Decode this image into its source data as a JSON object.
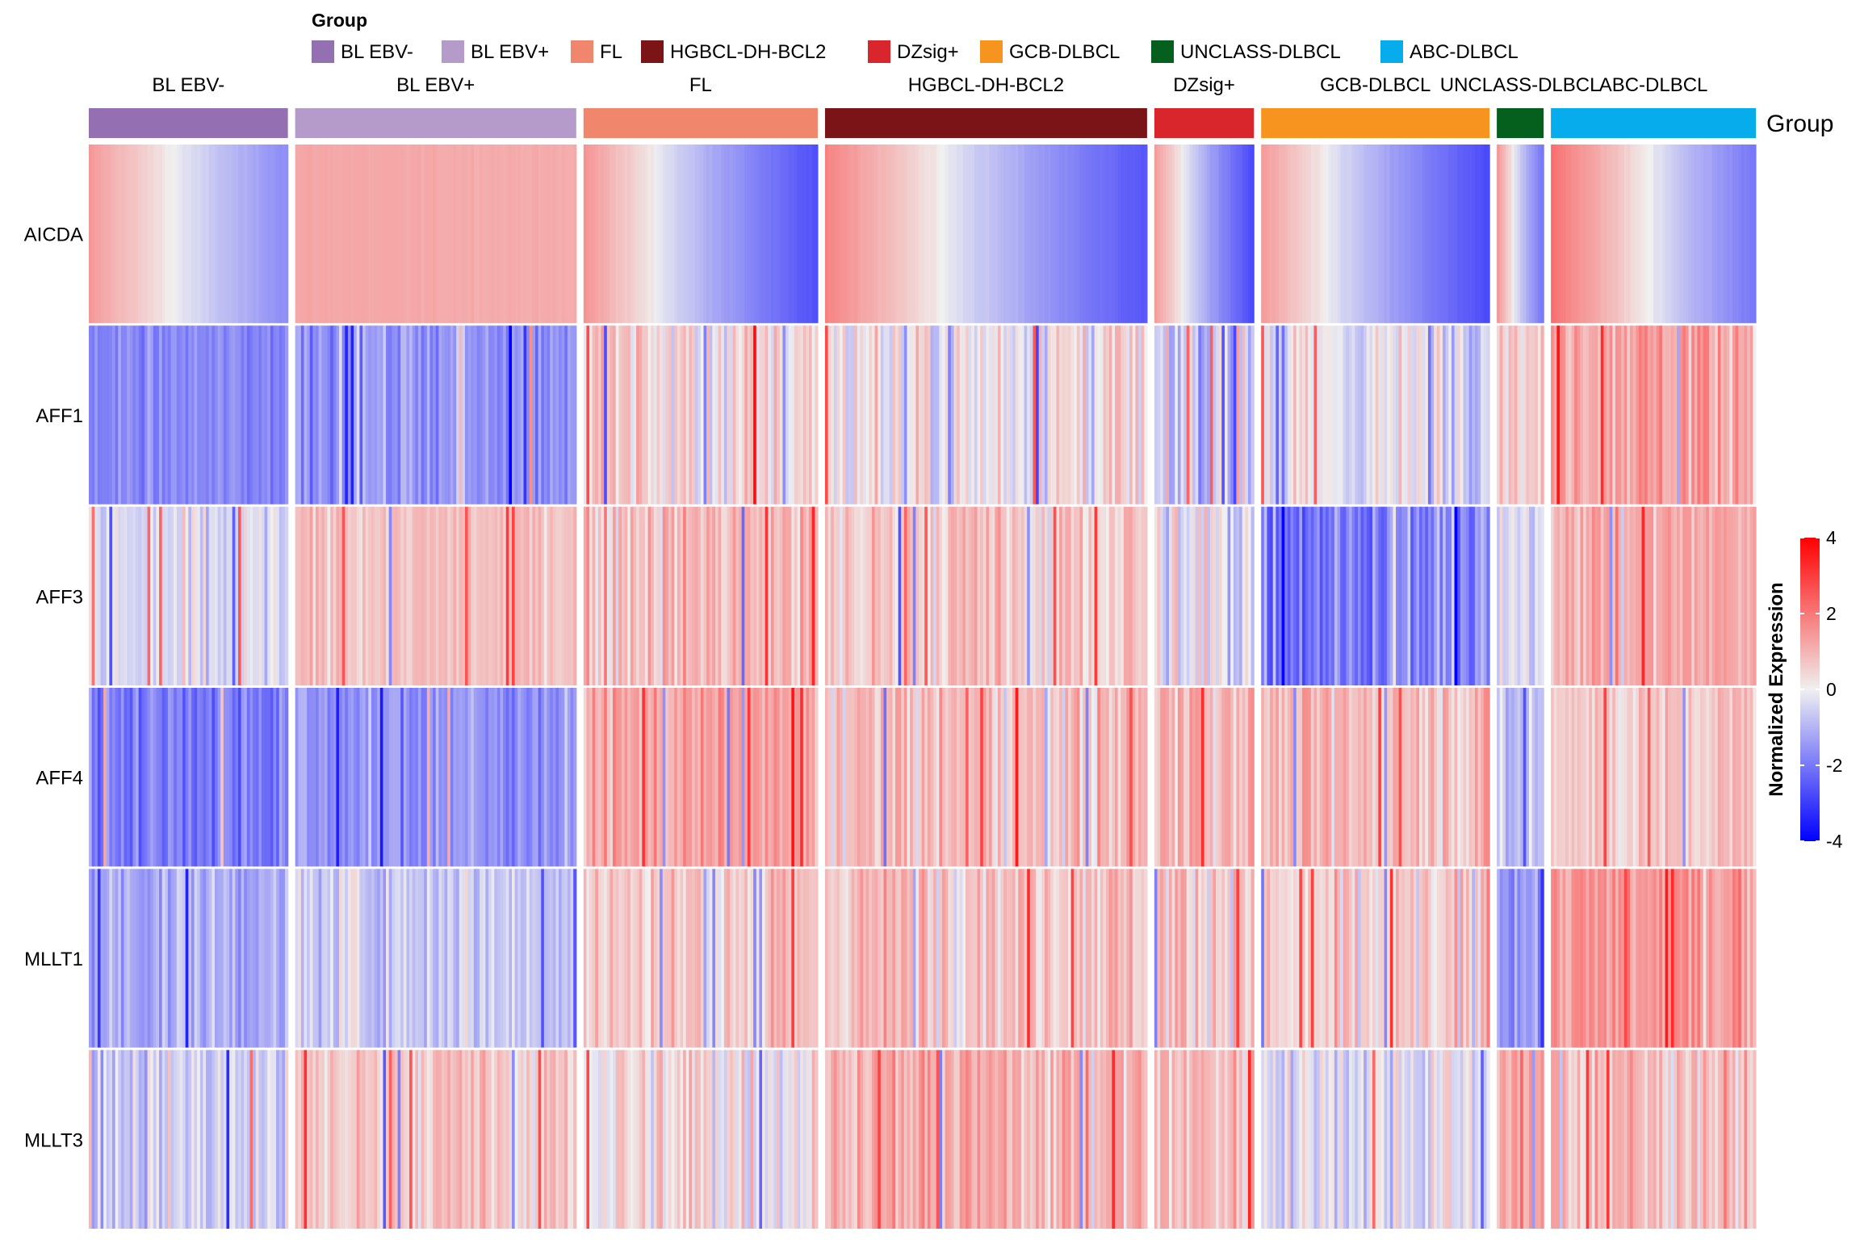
{
  "chart_data": {
    "type": "heatmap",
    "title": "",
    "xlabel": "",
    "ylabel": "",
    "legend": {
      "title": "Group",
      "entries": [
        {
          "label": "BL EBV-",
          "color": "#9470B2"
        },
        {
          "label": "BL EBV+",
          "color": "#B59BC9"
        },
        {
          "label": "FL",
          "color": "#F0876C"
        },
        {
          "label": "HGBCL-DH-BCL2",
          "color": "#7B1416"
        },
        {
          "label": "DZsig+",
          "color": "#D8262C"
        },
        {
          "label": "GCB-DLBCL",
          "color": "#F7941F"
        },
        {
          "label": "UNCLASS-DLBCL",
          "color": "#05601E"
        },
        {
          "label": "ABC-DLBCL",
          "color": "#06ACEC"
        }
      ]
    },
    "annotation_label": "Group",
    "column_groups": [
      {
        "name": "BL EBV-",
        "color": "#9470B2",
        "n": 68,
        "profile": {
          "AICDA": [
            1.2,
            -1.4
          ],
          "AFF1": [
            -1.5,
            0.4
          ],
          "AFF3": [
            -0.3,
            0.5
          ],
          "AFF4": [
            -1.6,
            0.6
          ],
          "MLLT1": [
            -0.9,
            0.5
          ],
          "MLLT3": [
            -0.4,
            0.6
          ]
        }
      },
      {
        "name": "BL EBV+",
        "color": "#B59BC9",
        "n": 96,
        "profile": {
          "AICDA": [
            1.0,
            0.9
          ],
          "AFF1": [
            -1.2,
            0.6
          ],
          "AFF3": [
            0.6,
            0.3
          ],
          "AFF4": [
            -1.3,
            0.5
          ],
          "MLLT1": [
            -0.4,
            0.5
          ],
          "MLLT3": [
            0.5,
            0.5
          ]
        }
      },
      {
        "name": "FL",
        "color": "#F0876C",
        "n": 80,
        "profile": {
          "AICDA": [
            1.3,
            -2.5
          ],
          "AFF1": [
            0.3,
            0.7
          ],
          "AFF3": [
            0.7,
            0.6
          ],
          "AFF4": [
            1.0,
            0.5
          ],
          "MLLT1": [
            0.5,
            0.6
          ],
          "MLLT3": [
            0.2,
            0.6
          ]
        }
      },
      {
        "name": "HGBCL-DH-BCL2",
        "color": "#7B1416",
        "n": 110,
        "profile": {
          "AICDA": [
            1.6,
            -2.4
          ],
          "AFF1": [
            0.1,
            0.7
          ],
          "AFF3": [
            0.5,
            0.6
          ],
          "AFF4": [
            0.6,
            0.6
          ],
          "MLLT1": [
            0.7,
            0.6
          ],
          "MLLT3": [
            0.9,
            0.6
          ]
        }
      },
      {
        "name": "DZsig+",
        "color": "#D8262C",
        "n": 34,
        "profile": {
          "AICDA": [
            1.2,
            -2.6
          ],
          "AFF1": [
            -0.6,
            0.8
          ],
          "AFF3": [
            -0.2,
            0.7
          ],
          "AFF4": [
            0.9,
            0.6
          ],
          "MLLT1": [
            0.6,
            0.6
          ],
          "MLLT3": [
            0.7,
            0.6
          ]
        }
      },
      {
        "name": "GCB-DLBCL",
        "color": "#F7941F",
        "n": 78,
        "profile": {
          "AICDA": [
            1.2,
            -2.6
          ],
          "AFF1": [
            -0.1,
            0.6
          ],
          "AFF3": [
            -1.6,
            0.8
          ],
          "AFF4": [
            0.7,
            0.5
          ],
          "MLLT1": [
            0.3,
            0.6
          ],
          "MLLT3": [
            -0.1,
            0.6
          ]
        }
      },
      {
        "name": "UNCLASS-DLBCL",
        "color": "#05601E",
        "n": 16,
        "profile": {
          "AICDA": [
            1.2,
            -1.8
          ],
          "AFF1": [
            0.5,
            0.5
          ],
          "AFF3": [
            -0.3,
            0.6
          ],
          "AFF4": [
            -0.6,
            0.6
          ],
          "MLLT1": [
            -1.0,
            0.6
          ],
          "MLLT3": [
            1.0,
            0.6
          ]
        }
      },
      {
        "name": "ABC-DLBCL",
        "color": "#06ACEC",
        "n": 70,
        "profile": {
          "AICDA": [
            1.9,
            -1.8
          ],
          "AFF1": [
            1.2,
            0.6
          ],
          "AFF3": [
            1.0,
            0.5
          ],
          "AFF4": [
            0.5,
            0.5
          ],
          "MLLT1": [
            1.2,
            0.6
          ],
          "MLLT3": [
            0.7,
            0.6
          ]
        }
      }
    ],
    "rows": [
      "AICDA",
      "AFF1",
      "AFF3",
      "AFF4",
      "MLLT1",
      "MLLT3"
    ],
    "colorbar": {
      "title": "Normalized Expression",
      "range": [
        -4,
        4
      ],
      "ticks": [
        4,
        2,
        0,
        -2,
        -4
      ],
      "tick_labels": [
        "4",
        "2",
        "0",
        "-2",
        "-4"
      ],
      "low_color": "#0000FF",
      "mid_color": "#F0F0F0",
      "high_color": "#FF0000"
    }
  }
}
